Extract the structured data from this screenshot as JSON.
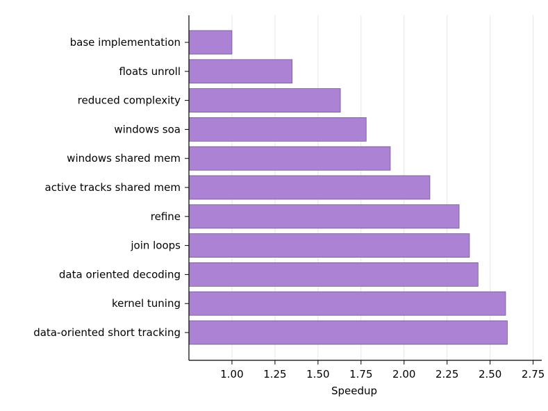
{
  "chart_data": {
    "type": "bar",
    "orientation": "horizontal",
    "categories": [
      "base implementation",
      "floats unroll",
      "reduced complexity",
      "windows soa",
      "windows shared mem",
      "active tracks shared mem",
      "refine",
      "join loops",
      "data oriented decoding",
      "kernel tuning",
      "data-oriented short tracking"
    ],
    "values": [
      1.0,
      1.35,
      1.63,
      1.78,
      1.92,
      2.15,
      2.32,
      2.38,
      2.43,
      2.59,
      2.6
    ],
    "title": "",
    "xlabel": "Speedup",
    "ylabel": "",
    "xlim": [
      0.75,
      2.8
    ],
    "xticks": [
      1.0,
      1.25,
      1.5,
      1.75,
      2.0,
      2.25,
      2.5,
      2.75
    ],
    "xtick_labels": [
      "1.00",
      "1.25",
      "1.50",
      "1.75",
      "2.00",
      "2.25",
      "2.50",
      "2.75"
    ],
    "grid": "vertical",
    "legend": "none",
    "bar_color": "#ab82d4",
    "bar_edge_color": "#6e5a86",
    "grid_color": "#e6e6e6"
  }
}
